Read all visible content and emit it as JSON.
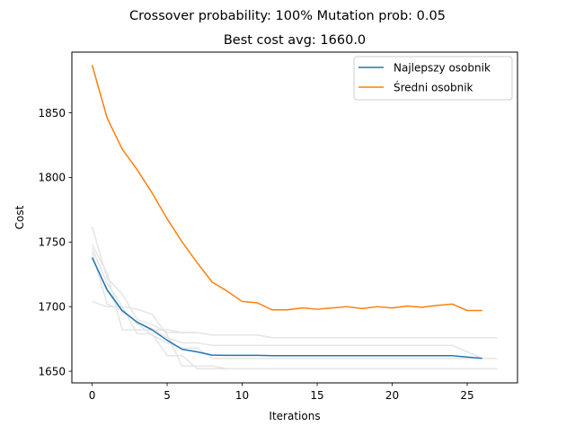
{
  "chart_data": {
    "type": "line",
    "suptitle": "Crossover probability: 100% Mutation prob: 0.05",
    "title": "Best cost avg: 1660.0",
    "xlabel": "Iterations",
    "ylabel": "Cost",
    "xlim": [
      -1.35,
      28.35
    ],
    "ylim": [
      1641,
      1897
    ],
    "xticks": [
      0,
      5,
      10,
      15,
      20,
      25
    ],
    "yticks": [
      1650,
      1700,
      1750,
      1800,
      1850
    ],
    "grid": false,
    "legend_position": "top-right",
    "series": [
      {
        "name": "Najlepszy osobnik",
        "color": "#1f77b4",
        "x": [
          0,
          1,
          2,
          3,
          4,
          5,
          6,
          7,
          8,
          9,
          10,
          11,
          12,
          13,
          14,
          15,
          16,
          17,
          18,
          19,
          20,
          21,
          22,
          23,
          24,
          25,
          26
        ],
        "values": [
          1738,
          1713,
          1697,
          1688,
          1682,
          1674,
          1667,
          1665,
          1662.5,
          1662.3,
          1662.3,
          1662.3,
          1662,
          1662,
          1662,
          1662,
          1662,
          1662,
          1662,
          1662,
          1662,
          1662,
          1662,
          1662,
          1662,
          1661,
          1660
        ]
      },
      {
        "name": "Średni osobnik",
        "color": "#ff7f0e",
        "x": [
          0,
          1,
          2,
          3,
          4,
          5,
          6,
          7,
          8,
          9,
          10,
          11,
          12,
          13,
          14,
          15,
          16,
          17,
          18,
          19,
          20,
          21,
          22,
          23,
          24,
          25,
          26
        ],
        "values": [
          1887,
          1846,
          1822,
          1806,
          1788,
          1768,
          1750,
          1734,
          1719,
          1712,
          1704,
          1703,
          1697.5,
          1697.5,
          1699,
          1698,
          1699,
          1700,
          1698.5,
          1700,
          1699,
          1700.5,
          1699.5,
          1701,
          1702,
          1697,
          1697
        ]
      }
    ],
    "background_runs": {
      "color": "#e5e5e5",
      "x": [
        0,
        1,
        2,
        3,
        4,
        5,
        6,
        7,
        8,
        9,
        10,
        11,
        12,
        13,
        14,
        15,
        16,
        17,
        18,
        19,
        20,
        21,
        22,
        23,
        24,
        25,
        26,
        27
      ],
      "runs": [
        [
          1762,
          1722,
          1710,
          1690,
          1686,
          1680,
          1680,
          1680,
          1678,
          1678,
          1678,
          1678,
          1676,
          1676,
          1676,
          1676,
          1676,
          1676,
          1676,
          1676,
          1676,
          1676,
          1676,
          1676,
          1676,
          1676,
          1676,
          1676
        ],
        [
          1748,
          1726,
          1682,
          1682,
          1682,
          1682,
          1680,
          1680,
          1678,
          1678,
          1678,
          1678,
          1676,
          1676,
          1676,
          1676,
          1676,
          1676,
          1676,
          1676,
          1676,
          1676,
          1676,
          1676,
          1676,
          1676,
          1676,
          1676
        ],
        [
          1745,
          1718,
          1700,
          1679,
          1679,
          1662,
          1662,
          1652,
          1652,
          1652,
          1652,
          1652,
          1652,
          1652,
          1652,
          1652,
          1652,
          1652,
          1652,
          1652,
          1652,
          1652,
          1652,
          1652,
          1652,
          1652,
          1652,
          1652
        ],
        [
          1704,
          1700,
          1700,
          1698,
          1694,
          1678,
          1654,
          1654,
          1654,
          1652,
          1652,
          1652,
          1652,
          1652,
          1652,
          1652,
          1652,
          1652,
          1652,
          1652,
          1652,
          1652,
          1652,
          1652,
          1652,
          1652,
          1652,
          1652
        ],
        [
          1742,
          1702,
          1697,
          1687,
          1678,
          1672,
          1668,
          1668,
          1660,
          1660,
          1660,
          1660,
          1660,
          1660,
          1660,
          1660,
          1660,
          1660,
          1660,
          1660,
          1660,
          1660,
          1660,
          1660,
          1660,
          1660,
          1660,
          1660
        ],
        [
          1738,
          1712,
          1696,
          1688,
          1683,
          1676,
          1672,
          1672,
          1670,
          1670,
          1670,
          1670,
          1670,
          1670,
          1670,
          1670,
          1670,
          1670,
          1670,
          1670,
          1670,
          1670,
          1670,
          1670,
          1670,
          1665,
          1660,
          1660
        ]
      ]
    }
  }
}
